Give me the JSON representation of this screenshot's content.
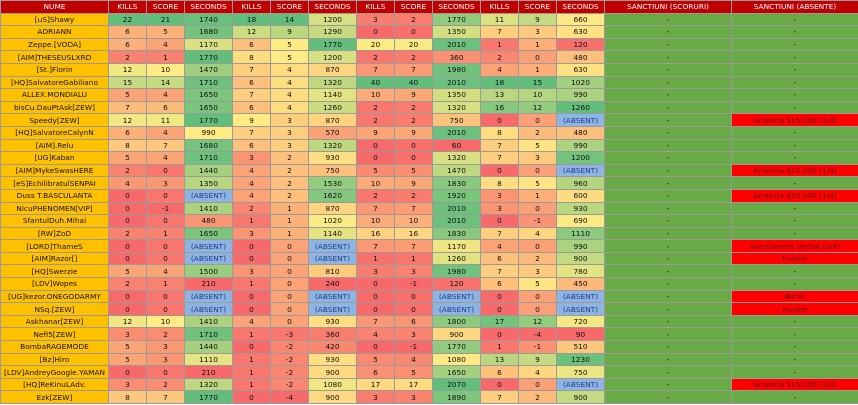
{
  "table": {
    "header": [
      "NUME",
      "KILLS",
      "SCORE",
      "SECONDS",
      "KILLS",
      "SCORE",
      "SECONDS",
      "KILLS",
      "SCORE",
      "SECONDS",
      "KILLS",
      "SCORE",
      "SECONDS",
      "SANCTIUNI (SCORURI)",
      "SANCTIUNI (ABSENTE)"
    ],
    "rows": [
      [
        "[uS]Shawy",
        22,
        21,
        1740,
        18,
        14,
        1200,
        3,
        2,
        1770,
        11,
        9,
        660,
        "-",
        "-"
      ],
      [
        "ADRIANN",
        6,
        5,
        1680,
        12,
        9,
        1290,
        0,
        0,
        1350,
        7,
        3,
        630,
        "-",
        "-"
      ],
      [
        "Zeppe.[VODA]",
        6,
        4,
        1170,
        6,
        5,
        1770,
        20,
        20,
        2010,
        1,
        1,
        120,
        "-",
        "-"
      ],
      [
        "[AIM]THESEUSLXRD",
        2,
        1,
        1770,
        8,
        5,
        1200,
        2,
        2,
        360,
        2,
        0,
        480,
        "-",
        "-"
      ],
      [
        "[St.]Florin",
        12,
        10,
        1470,
        7,
        4,
        870,
        7,
        7,
        1980,
        4,
        1,
        630,
        "-",
        "-"
      ],
      [
        "[HQ]SalvatoreGabiliano",
        15,
        14,
        1710,
        6,
        4,
        1320,
        40,
        40,
        2010,
        18,
        15,
        1020,
        "-",
        "-"
      ],
      [
        "ALLEX.MONDIALU",
        5,
        4,
        1650,
        7,
        4,
        1140,
        10,
        9,
        1350,
        13,
        10,
        990,
        "-",
        "-"
      ],
      [
        "bisCu.DauPtAsk[ZEW]",
        7,
        6,
        1650,
        6,
        4,
        1260,
        2,
        2,
        1320,
        16,
        12,
        1260,
        "-",
        "-"
      ],
      [
        "Speedy[ZEW]",
        12,
        11,
        1770,
        9,
        3,
        870,
        2,
        2,
        750,
        0,
        0,
        "(ABSENT)",
        "-",
        "Amenda $15,000 (1/4)"
      ],
      [
        "[HQ]SalvatoreCalynN",
        6,
        4,
        990,
        7,
        3,
        570,
        9,
        9,
        2010,
        8,
        2,
        480,
        "-",
        "-"
      ],
      [
        "[AIM].Relu",
        8,
        7,
        1680,
        6,
        3,
        1320,
        0,
        0,
        60,
        7,
        5,
        990,
        "-",
        "-"
      ],
      [
        "[UG]Kaban",
        5,
        4,
        1710,
        3,
        2,
        930,
        0,
        0,
        1320,
        7,
        3,
        1200,
        "-",
        "-"
      ],
      [
        "[AIM]MykeSwasHERE",
        2,
        0,
        1440,
        4,
        2,
        750,
        5,
        5,
        1470,
        0,
        0,
        "(ABSENT)",
        "-",
        "Amenda $15,000 (1/4)"
      ],
      [
        "[eS]EchilibratulSENPAI",
        4,
        3,
        1350,
        4,
        2,
        1530,
        10,
        9,
        1830,
        8,
        5,
        960,
        "-",
        "-"
      ],
      [
        "Duss T.BASCULANTA",
        0,
        0,
        "(ABSENT)",
        4,
        2,
        1620,
        2,
        2,
        1920,
        3,
        1,
        600,
        "-",
        "Amenda $15,000 (1/4)"
      ],
      [
        "NicuPHENOMEN[VIP]",
        0,
        -1,
        1410,
        2,
        1,
        870,
        7,
        7,
        2010,
        3,
        0,
        930,
        "-",
        "-"
      ],
      [
        "SfantulDuh.Mihai",
        0,
        0,
        480,
        1,
        1,
        1020,
        10,
        10,
        2010,
        0,
        -1,
        690,
        "-",
        "-"
      ],
      [
        "[RW]ZoD",
        2,
        1,
        1650,
        3,
        1,
        1140,
        16,
        16,
        1830,
        7,
        4,
        1110,
        "-",
        "-"
      ],
      [
        "[LORD]ThameS",
        0,
        0,
        "(ABSENT)",
        0,
        0,
        "(ABSENT)",
        7,
        7,
        1170,
        4,
        0,
        990,
        "-",
        "Avertisment Verbal (2/4)"
      ],
      [
        "[AIM]Razor[]",
        0,
        0,
        "(ABSENT)",
        0,
        0,
        "(ABSENT)",
        1,
        1,
        1260,
        6,
        2,
        900,
        "-",
        "Invoire"
      ],
      [
        "[HQ]Swerzie",
        5,
        4,
        1500,
        3,
        0,
        810,
        3,
        3,
        1980,
        7,
        3,
        780,
        "-",
        "-"
      ],
      [
        "[LDV]Wopes",
        2,
        1,
        210,
        1,
        0,
        240,
        0,
        -1,
        120,
        6,
        5,
        450,
        "-",
        "-"
      ],
      [
        "[UG]kezor.ONEGODARMY",
        0,
        0,
        "(ABSENT)",
        0,
        0,
        "(ABSENT)",
        0,
        0,
        "(ABSENT)",
        0,
        0,
        "(ABSENT)",
        "-",
        "Barat"
      ],
      [
        "NSq.[ZEW]",
        0,
        0,
        "(ABSENT)",
        0,
        0,
        "(ABSENT)",
        0,
        0,
        "(ABSENT)",
        0,
        0,
        "(ABSENT)",
        "-",
        "Invoire"
      ],
      [
        "Askhanar[ZEW]",
        12,
        10,
        1410,
        4,
        0,
        930,
        7,
        6,
        1800,
        17,
        12,
        720,
        "-",
        "-"
      ],
      [
        "Nefi5[ZEW]",
        3,
        2,
        1710,
        1,
        -3,
        360,
        4,
        3,
        900,
        0,
        -4,
        90,
        "-",
        "-"
      ],
      [
        "BombaRAGEMODE",
        5,
        3,
        1440,
        0,
        -2,
        420,
        0,
        -1,
        1770,
        1,
        -1,
        510,
        "-",
        "-"
      ],
      [
        "[Bz]Hiro",
        5,
        3,
        1110,
        1,
        -2,
        930,
        5,
        4,
        1080,
        13,
        9,
        1230,
        "-",
        "-"
      ],
      [
        "[LDV]AndreyGoogle.YAMAN",
        0,
        0,
        210,
        1,
        -2,
        900,
        6,
        5,
        1650,
        6,
        4,
        750,
        "-",
        "-"
      ],
      [
        "[HQ]ReKinuLAdv.",
        3,
        2,
        1320,
        1,
        -2,
        1080,
        17,
        17,
        2070,
        0,
        0,
        "(ABSENT)",
        "-",
        "Amenda $15,000 (1/4)"
      ],
      [
        "Ezk[ZEW]",
        8,
        7,
        1770,
        0,
        -4,
        900,
        3,
        3,
        1890,
        7,
        2,
        900,
        "-",
        "-"
      ]
    ]
  }
}
